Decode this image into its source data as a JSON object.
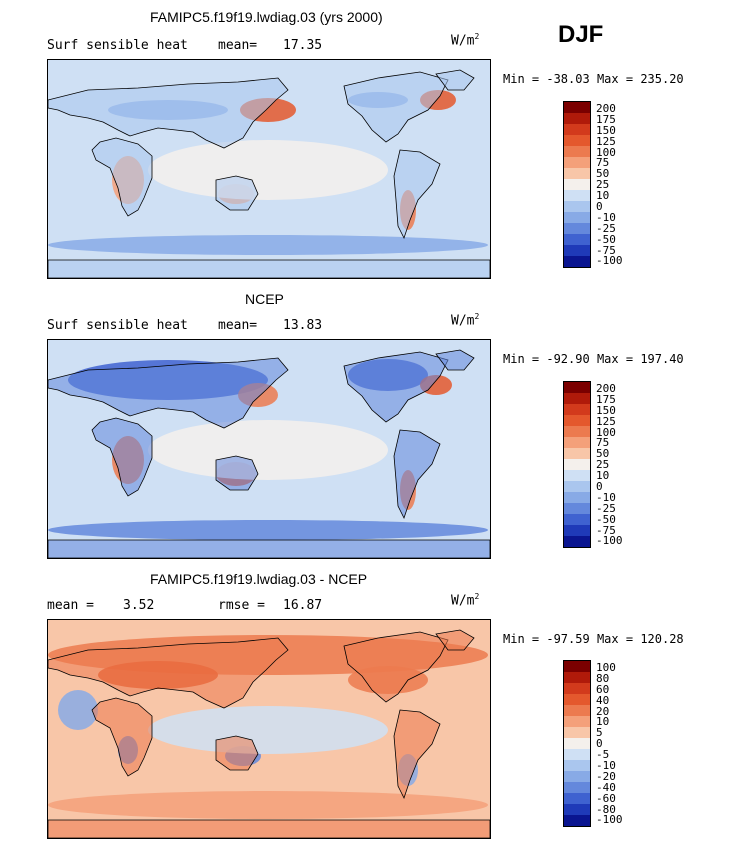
{
  "season": "DJF",
  "panels": [
    {
      "title": "FAMIPC5.f19f19.lwdiag.03 (yrs 2000)",
      "field": "Surf sensible heat",
      "stat_label": "mean=",
      "stat_value": "17.35",
      "units": "W/m",
      "units_sup": "2",
      "min_label": "Min =",
      "min_value": "-38.03",
      "max_label": "Max =",
      "max_value": "235.20",
      "levels": [
        "200",
        "175",
        "150",
        "125",
        "100",
        "75",
        "50",
        "25",
        "10",
        "0",
        "-10",
        "-25",
        "-50",
        "-75",
        "-100"
      ]
    },
    {
      "title": "NCEP",
      "field": "Surf sensible heat",
      "stat_label": "mean=",
      "stat_value": "13.83",
      "units": "W/m",
      "units_sup": "2",
      "min_label": "Min =",
      "min_value": "-92.90",
      "max_label": "Max =",
      "max_value": "197.40",
      "levels": [
        "200",
        "175",
        "150",
        "125",
        "100",
        "75",
        "50",
        "25",
        "10",
        "0",
        "-10",
        "-25",
        "-50",
        "-75",
        "-100"
      ]
    },
    {
      "title": "FAMIPC5.f19f19.lwdiag.03 - NCEP",
      "mean_label": "mean =",
      "mean_value": "3.52",
      "rmse_label": "rmse =",
      "rmse_value": "16.87",
      "units": "W/m",
      "units_sup": "2",
      "min_label": "Min =",
      "min_value": "-97.59",
      "max_label": "Max =",
      "max_value": "120.28",
      "levels": [
        "100",
        "80",
        "60",
        "40",
        "20",
        "10",
        "5",
        "0",
        "-5",
        "-10",
        "-20",
        "-40",
        "-60",
        "-80",
        "-100"
      ]
    }
  ],
  "colors": [
    "#7b0000",
    "#b01a0a",
    "#d23a1c",
    "#e4582d",
    "#ec7a4f",
    "#f4a07a",
    "#f8c6a8",
    "#f4f0ec",
    "#cfe0f4",
    "#aac6ee",
    "#88aae6",
    "#6488dc",
    "#3f62d0",
    "#1f3ab8",
    "#0a1590"
  ]
}
